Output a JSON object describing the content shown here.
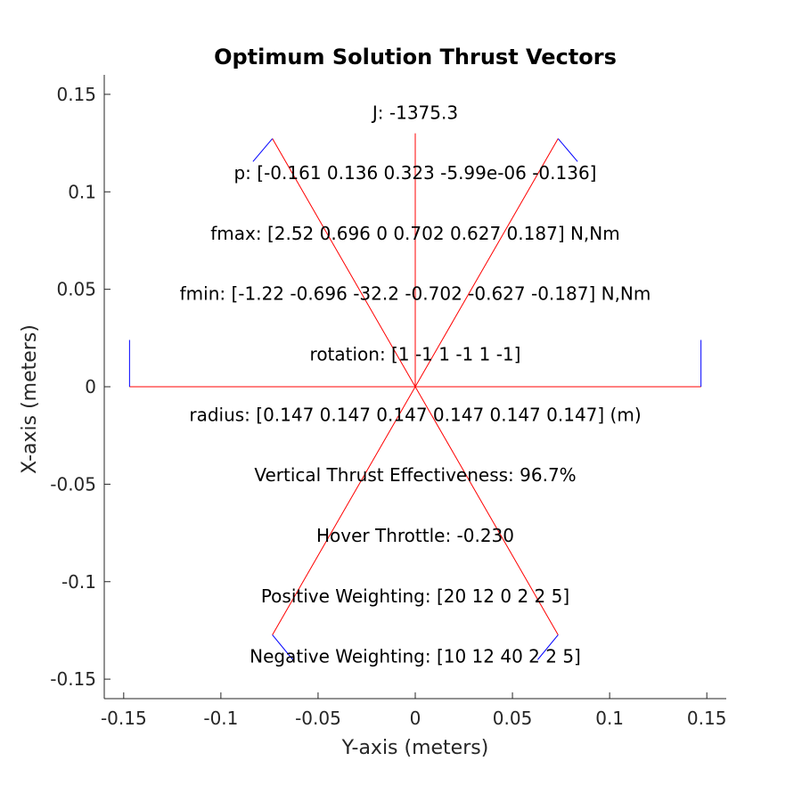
{
  "chart_data": {
    "type": "line",
    "title": "Optimum Solution Thrust Vectors",
    "xlabel": "Y-axis (meters)",
    "ylabel": "X-axis (meters)",
    "xlim": [
      -0.16,
      0.16
    ],
    "ylim": [
      -0.16,
      0.16
    ],
    "xticks": [
      -0.15,
      -0.1,
      -0.05,
      0,
      0.05,
      0.1,
      0.15
    ],
    "xtick_labels": [
      "-0.15",
      "-0.1",
      "-0.05",
      "0",
      "0.05",
      "0.1",
      "0.15"
    ],
    "yticks": [
      0.15,
      0.1,
      0.05,
      0,
      -0.05,
      -0.1,
      -0.15
    ],
    "ytick_labels": [
      "0.15",
      "0.1",
      "0.05",
      "0",
      "-0.05",
      "-0.1",
      "-0.15"
    ],
    "grid": false,
    "colors": {
      "arm": "#ff0000",
      "thrust": "#0000ff",
      "axes": "#262626"
    },
    "series": [
      {
        "values": [
          [
            0,
            0
          ],
          [
            0.147,
            0
          ]
        ],
        "color": "#ff0000"
      },
      {
        "values": [
          [
            0,
            0
          ],
          [
            0.0735,
            0.1273
          ]
        ],
        "color": "#ff0000"
      },
      {
        "values": [
          [
            0,
            0
          ],
          [
            -0.0735,
            0.1273
          ]
        ],
        "color": "#ff0000"
      },
      {
        "values": [
          [
            0,
            0
          ],
          [
            -0.147,
            0
          ]
        ],
        "color": "#ff0000"
      },
      {
        "values": [
          [
            0,
            0
          ],
          [
            -0.0735,
            -0.1273
          ]
        ],
        "color": "#ff0000"
      },
      {
        "values": [
          [
            0,
            0
          ],
          [
            0.0735,
            -0.1273
          ]
        ],
        "color": "#ff0000"
      },
      {
        "values": [
          [
            0,
            0
          ],
          [
            0,
            0.13
          ]
        ],
        "color": "#ff0000"
      },
      {
        "values": [
          [
            0.147,
            0
          ],
          [
            0.147,
            0.024
          ]
        ],
        "color": "#0000ff"
      },
      {
        "values": [
          [
            0.0735,
            0.1273
          ],
          [
            0.0835,
            0.1155
          ]
        ],
        "color": "#0000ff"
      },
      {
        "values": [
          [
            -0.0735,
            0.1273
          ],
          [
            -0.0835,
            0.1155
          ]
        ],
        "color": "#0000ff"
      },
      {
        "values": [
          [
            -0.147,
            0
          ],
          [
            -0.147,
            0.024
          ]
        ],
        "color": "#0000ff"
      },
      {
        "values": [
          [
            -0.0735,
            -0.1273
          ],
          [
            -0.063,
            -0.14
          ]
        ],
        "color": "#0000ff"
      },
      {
        "values": [
          [
            0.0735,
            -0.1273
          ],
          [
            0.063,
            -0.14
          ]
        ],
        "color": "#0000ff"
      }
    ],
    "annotations": [
      {
        "text": "J: -1375.3",
        "x": 0,
        "y": 0.14
      },
      {
        "text": "p: [-0.161 0.136 0.323 -5.99e-06 -0.136]",
        "x": 0,
        "y": 0.109
      },
      {
        "text": "fmax: [2.52 0.696 0 0.702 0.627 0.187] N,Nm",
        "x": 0,
        "y": 0.078
      },
      {
        "text": "fmin: [-1.22 -0.696 -32.2 -0.702 -0.627 -0.187] N,Nm",
        "x": 0,
        "y": 0.047
      },
      {
        "text": "rotation: [1 -1 1 -1 1 -1]",
        "x": 0,
        "y": 0.016
      },
      {
        "text": "radius: [0.147 0.147 0.147 0.147 0.147 0.147] (m)",
        "x": 0,
        "y": -0.015
      },
      {
        "text": "Vertical Thrust Effectiveness: 96.7%",
        "x": 0,
        "y": -0.046
      },
      {
        "text": "Hover Throttle: -0.230",
        "x": 0,
        "y": -0.077
      },
      {
        "text": "Positive Weighting: [20 12 0 2 2 5]",
        "x": 0,
        "y": -0.108
      },
      {
        "text": "Negative Weighting: [10 12 40 2 2 5]",
        "x": 0,
        "y": -0.139
      }
    ]
  }
}
